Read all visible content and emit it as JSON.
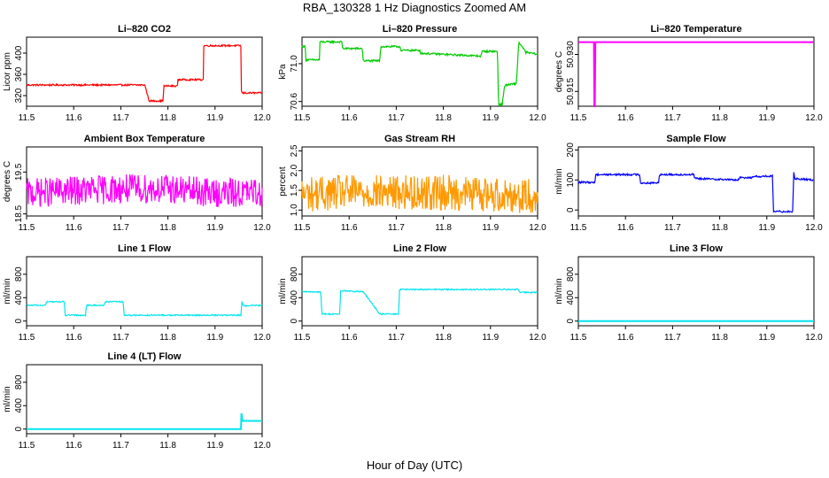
{
  "figure": {
    "title": "RBA_130328  1 Hz Diagnostics Zoomed AM",
    "xlabel": "Hour of Day (UTC)"
  },
  "chart_data": [
    {
      "type": "line",
      "title": "Li–820 CO2",
      "ylabel": "Licor ppm",
      "color": "#ff0000",
      "xlim": [
        11.5,
        12.0
      ],
      "ylim": [
        300,
        430
      ],
      "xticks": [
        "11.5",
        "11.6",
        "11.7",
        "11.8",
        "11.9",
        "12.0"
      ],
      "yticks": [
        "320",
        "360",
        "400"
      ],
      "ytick_values": [
        320,
        360,
        400
      ],
      "x": [
        11.5,
        11.75,
        11.751,
        11.76,
        11.761,
        11.79,
        11.791,
        11.82,
        11.821,
        11.875,
        11.876,
        11.955,
        11.956,
        12.0
      ],
      "y": [
        340,
        340,
        340,
        310,
        310,
        310,
        338,
        338,
        350,
        350,
        414,
        414,
        325,
        325
      ],
      "noise": 1.5
    },
    {
      "type": "line",
      "title": "Li–820 Pressure",
      "ylabel": "kPa",
      "color": "#00cc00",
      "xlim": [
        11.5,
        12.0
      ],
      "ylim": [
        70.55,
        71.28
      ],
      "xticks": [
        "11.5",
        "11.6",
        "11.7",
        "11.8",
        "11.9",
        "12.0"
      ],
      "yticks": [
        "70.6",
        "71.0"
      ],
      "ytick_values": [
        70.6,
        71.0
      ],
      "x": [
        11.5,
        11.507,
        11.508,
        11.537,
        11.538,
        11.585,
        11.586,
        11.628,
        11.63,
        11.665,
        11.667,
        11.708,
        11.71,
        11.75,
        11.752,
        11.88,
        11.882,
        11.915,
        11.917,
        11.925,
        11.93,
        11.955,
        11.96,
        11.975,
        12.0
      ],
      "y": [
        71.18,
        71.18,
        71.04,
        71.04,
        71.23,
        71.23,
        71.16,
        71.16,
        71.03,
        71.03,
        71.18,
        71.18,
        71.14,
        71.14,
        71.11,
        71.08,
        71.13,
        71.13,
        70.57,
        70.57,
        70.77,
        70.79,
        71.23,
        71.12,
        71.1
      ],
      "noise": 0.01
    },
    {
      "type": "line",
      "title": "Li–820 Temperature",
      "ylabel": "degrees C",
      "color": "#ff00ff",
      "xlim": [
        11.5,
        12.0
      ],
      "ylim": [
        50.909,
        50.937
      ],
      "xticks": [
        "11.5",
        "11.6",
        "11.7",
        "11.8",
        "11.9",
        "12.0"
      ],
      "yticks": [
        "50.915",
        "50.930"
      ],
      "ytick_values": [
        50.915,
        50.93
      ],
      "x": [
        11.5,
        11.533,
        11.534,
        11.535,
        11.536,
        12.0
      ],
      "y": [
        50.935,
        50.935,
        50.909,
        50.909,
        50.935,
        50.935
      ],
      "noise": 0
    },
    {
      "type": "line",
      "title": "Ambient Box Temperature",
      "ylabel": "degrees C",
      "color": "#ff00ff",
      "xlim": [
        11.5,
        12.0
      ],
      "ylim": [
        18.45,
        20.1
      ],
      "xticks": [
        "11.5",
        "11.6",
        "11.7",
        "11.8",
        "11.9",
        "12.0"
      ],
      "yticks": [
        "18.5",
        "19.5"
      ],
      "ytick_values": [
        18.5,
        19.5
      ],
      "x": [
        11.5,
        11.6,
        11.7,
        11.8,
        11.9,
        12.0
      ],
      "y": [
        19.0,
        19.05,
        19.1,
        19.1,
        19.0,
        19.0
      ],
      "noise": 0.35
    },
    {
      "type": "line",
      "title": "Gas Stream RH",
      "ylabel": "percent",
      "color": "#ff9900",
      "xlim": [
        11.5,
        12.0
      ],
      "ylim": [
        0.85,
        2.6
      ],
      "xticks": [
        "11.5",
        "11.6",
        "11.7",
        "11.8",
        "11.9",
        "12.0"
      ],
      "yticks": [
        "1.0",
        "1.5",
        "2.0",
        "2.5"
      ],
      "ytick_values": [
        1.0,
        1.5,
        2.0,
        2.5
      ],
      "x": [
        11.5,
        11.6,
        11.7,
        11.8,
        11.9,
        12.0
      ],
      "y": [
        1.4,
        1.45,
        1.45,
        1.45,
        1.4,
        1.35
      ],
      "noise": 0.45
    },
    {
      "type": "line",
      "title": "Sample Flow",
      "ylabel": "ml/min",
      "color": "#0000ff",
      "xlim": [
        11.5,
        12.0
      ],
      "ylim": [
        -20,
        210
      ],
      "xticks": [
        "11.5",
        "11.6",
        "11.7",
        "11.8",
        "11.9",
        "12.0"
      ],
      "yticks": [
        "0",
        "100",
        "200"
      ],
      "ytick_values": [
        0,
        100,
        200
      ],
      "x": [
        11.5,
        11.535,
        11.537,
        11.63,
        11.632,
        11.67,
        11.672,
        11.745,
        11.747,
        11.84,
        11.842,
        11.87,
        11.872,
        11.912,
        11.914,
        11.955,
        11.957,
        11.96,
        11.962,
        12.0
      ],
      "y": [
        92,
        92,
        118,
        118,
        90,
        90,
        118,
        118,
        105,
        100,
        108,
        108,
        112,
        112,
        -5,
        -5,
        130,
        100,
        104,
        100
      ],
      "noise": 3
    },
    {
      "type": "line",
      "title": "Line 1 Flow",
      "ylabel": "ml/min",
      "color": "#00e5ee",
      "xlim": [
        11.5,
        12.0
      ],
      "ylim": [
        -80,
        1100
      ],
      "xticks": [
        "11.5",
        "11.6",
        "11.7",
        "11.8",
        "11.9",
        "12.0"
      ],
      "yticks": [
        "0",
        "400",
        "800"
      ],
      "ytick_values": [
        0,
        400,
        800
      ],
      "x": [
        11.5,
        11.54,
        11.542,
        11.58,
        11.582,
        11.625,
        11.627,
        11.665,
        11.667,
        11.705,
        11.707,
        11.71,
        11.75,
        11.955,
        11.957,
        11.96,
        12.0
      ],
      "y": [
        270,
        270,
        330,
        330,
        100,
        100,
        270,
        270,
        330,
        330,
        100,
        100,
        100,
        100,
        340,
        260,
        270
      ],
      "noise": 10
    },
    {
      "type": "line",
      "title": "Line 2 Flow",
      "ylabel": "ml/min",
      "color": "#00e5ee",
      "xlim": [
        11.5,
        12.0
      ],
      "ylim": [
        -80,
        1100
      ],
      "xticks": [
        "11.5",
        "11.6",
        "11.7",
        "11.8",
        "11.9",
        "12.0"
      ],
      "yticks": [
        "0",
        "400",
        "800"
      ],
      "ytick_values": [
        0,
        400,
        800
      ],
      "x": [
        11.5,
        11.54,
        11.542,
        11.58,
        11.582,
        11.628,
        11.63,
        11.665,
        11.667,
        11.705,
        11.707,
        11.96,
        11.962,
        12.0
      ],
      "y": [
        500,
        500,
        120,
        120,
        520,
        500,
        500,
        120,
        120,
        120,
        540,
        540,
        490,
        490
      ],
      "noise": 10
    },
    {
      "type": "line",
      "title": "Line 3 Flow",
      "ylabel": "ml/min",
      "color": "#00e5ee",
      "xlim": [
        11.5,
        12.0
      ],
      "ylim": [
        -80,
        1100
      ],
      "xticks": [
        "11.5",
        "11.6",
        "11.7",
        "11.8",
        "11.9",
        "12.0"
      ],
      "yticks": [
        "0",
        "400",
        "800"
      ],
      "ytick_values": [
        0,
        400,
        800
      ],
      "x": [
        11.5,
        12.0
      ],
      "y": [
        0,
        0
      ],
      "noise": 0
    },
    {
      "type": "line",
      "title": "Line 4 (LT) Flow",
      "ylabel": "ml/min",
      "color": "#00e5ee",
      "xlim": [
        11.5,
        12.0
      ],
      "ylim": [
        -80,
        1100
      ],
      "xticks": [
        "11.5",
        "11.6",
        "11.7",
        "11.8",
        "11.9",
        "12.0"
      ],
      "yticks": [
        "0",
        "400",
        "800"
      ],
      "ytick_values": [
        0,
        400,
        800
      ],
      "x": [
        11.5,
        11.955,
        11.956,
        11.958,
        11.96,
        12.0
      ],
      "y": [
        0,
        0,
        270,
        140,
        140,
        140
      ],
      "noise": 0
    }
  ]
}
